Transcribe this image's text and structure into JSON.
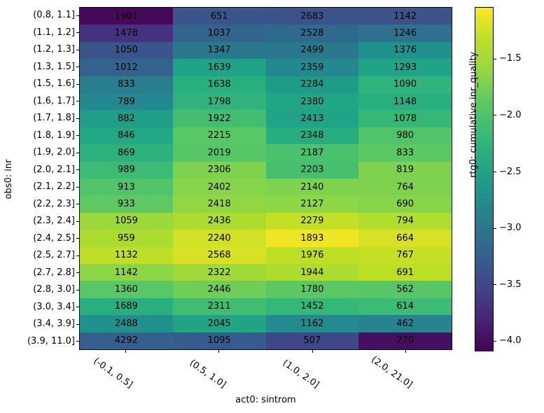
{
  "chart_data": {
    "type": "heatmap",
    "title": "",
    "xlabel": "act0: sintrom",
    "ylabel": "obs0: inr",
    "x_categories": [
      "(-0.1, 0.5]",
      "(0.5, 1.0]",
      "(1.0, 2.0]",
      "(2.0, 21.0]"
    ],
    "y_categories": [
      "(0.8, 1.1]",
      "(1.1, 1.2]",
      "(1.2, 1.3]",
      "(1.3, 1.5]",
      "(1.5, 1.6]",
      "(1.6, 1.7]",
      "(1.7, 1.8]",
      "(1.8, 1.9]",
      "(1.9, 2.0]",
      "(2.0, 2.1]",
      "(2.1, 2.2]",
      "(2.2, 2.3]",
      "(2.3, 2.4]",
      "(2.4, 2.5]",
      "(2.5, 2.7]",
      "(2.7, 2.8]",
      "(2.8, 3.0]",
      "(3.0, 3.4]",
      "(3.4, 3.9]",
      "(3.9, 11.0]"
    ],
    "annotations": [
      [
        1901,
        651,
        2683,
        1142
      ],
      [
        1478,
        1037,
        2528,
        1246
      ],
      [
        1050,
        1347,
        2499,
        1376
      ],
      [
        1012,
        1639,
        2359,
        1293
      ],
      [
        833,
        1638,
        2284,
        1090
      ],
      [
        789,
        1798,
        2380,
        1148
      ],
      [
        882,
        1922,
        2413,
        1078
      ],
      [
        846,
        2215,
        2348,
        980
      ],
      [
        869,
        2019,
        2187,
        833
      ],
      [
        989,
        2306,
        2203,
        819
      ],
      [
        913,
        2402,
        2140,
        764
      ],
      [
        933,
        2418,
        2127,
        690
      ],
      [
        1059,
        2436,
        2279,
        794
      ],
      [
        959,
        2240,
        1893,
        664
      ],
      [
        1132,
        2568,
        1976,
        767
      ],
      [
        1142,
        2322,
        1944,
        691
      ],
      [
        1360,
        2446,
        1780,
        562
      ],
      [
        1689,
        2311,
        1452,
        614
      ],
      [
        2488,
        2045,
        1162,
        462
      ],
      [
        4292,
        1095,
        507,
        270
      ]
    ],
    "cell_colors": [
      [
        "#45085b",
        "#3a558b",
        "#3b528b",
        "#3b528b"
      ],
      [
        "#46317e",
        "#33648d",
        "#30698e",
        "#2d718e"
      ],
      [
        "#3a558b",
        "#2a788e",
        "#2a788e",
        "#21918d"
      ],
      [
        "#33648d",
        "#20a386",
        "#23898e",
        "#20a386"
      ],
      [
        "#287d8e",
        "#29ae80",
        "#1e9c89",
        "#30b47b"
      ],
      [
        "#23898e",
        "#30b47b",
        "#21a685",
        "#29ae80"
      ],
      [
        "#1f9e88",
        "#43be71",
        "#20a386",
        "#35b778"
      ],
      [
        "#22a884",
        "#58c766",
        "#28ad81",
        "#51c469"
      ],
      [
        "#2db27d",
        "#56c667",
        "#4ac16d",
        "#5bc864"
      ],
      [
        "#3bbb75",
        "#7fd24e",
        "#46c06f",
        "#7fd24e"
      ],
      [
        "#51c469",
        "#85d44a",
        "#7fd24e",
        "#7fd24e"
      ],
      [
        "#5ec962",
        "#90d743",
        "#8dd645",
        "#85d44a"
      ],
      [
        "#9bd93b",
        "#addc30",
        "#c3e026",
        "#b1dd2e"
      ],
      [
        "#addc30",
        "#d0e126",
        "#f0e525",
        "#d7e226"
      ],
      [
        "#bddf26",
        "#d7e226",
        "#bddf26",
        "#c3e026"
      ],
      [
        "#8dd645",
        "#a1da38",
        "#addc30",
        "#bddf26"
      ],
      [
        "#58c766",
        "#6ece58",
        "#5bc864",
        "#56c667"
      ],
      [
        "#29ae80",
        "#41bd72",
        "#35b778",
        "#3bbb75"
      ],
      [
        "#21918d",
        "#21a486",
        "#238a8e",
        "#25848e"
      ],
      [
        "#355f8d",
        "#365c8d",
        "#404788",
        "#460f62"
      ]
    ],
    "colorbar": {
      "label": "rtg0: cumulative inr_quality",
      "colormap": "viridis",
      "vmin": -4.09,
      "vmax": -1.04,
      "tick_values": [
        -1.5,
        -2.0,
        -2.5,
        -3.0,
        -3.5,
        -4.0
      ],
      "tick_labels": [
        "−1.5",
        "−2.0",
        "−2.5",
        "−3.0",
        "−3.5",
        "−4.0"
      ],
      "gradient_stops_bottom_to_top": [
        "#440154",
        "#482475",
        "#414487",
        "#355f8d",
        "#2a788e",
        "#21918d",
        "#22a884",
        "#3bbb75",
        "#5ec962",
        "#95d840",
        "#bddf26",
        "#fde725"
      ]
    },
    "grid": false,
    "legend_position": "none",
    "annotation_color": "#000000"
  }
}
